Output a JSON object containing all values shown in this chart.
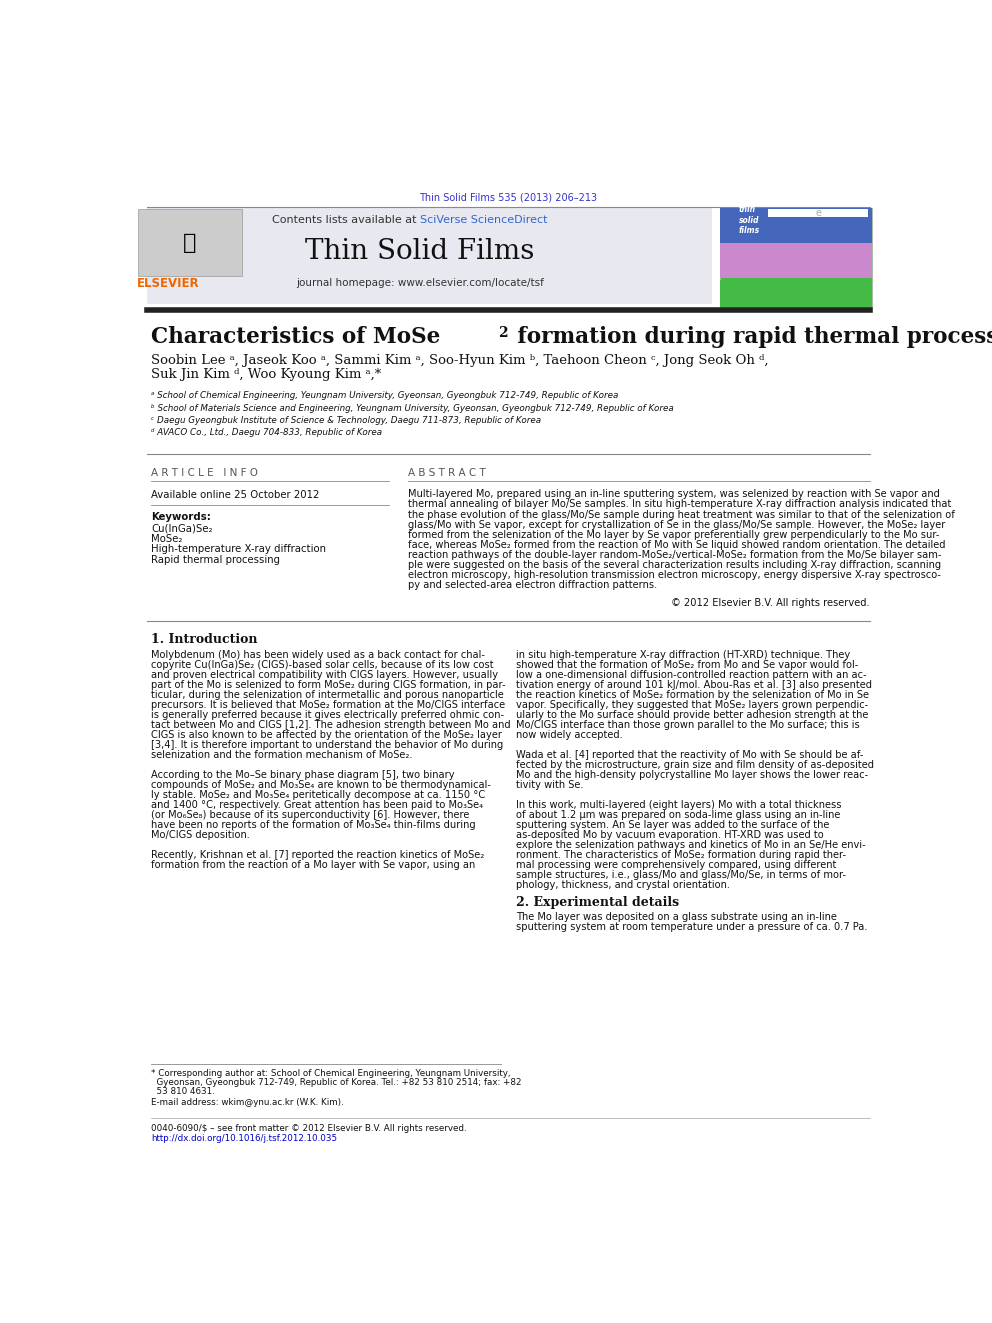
{
  "page_width": 9.92,
  "page_height": 13.23,
  "background_color": "#ffffff",
  "journal_ref_text": "Thin Solid Films 535 (2013) 206–213",
  "journal_ref_color": "#3333cc",
  "header_bg_color": "#e8e8f0",
  "journal_name": "Thin Solid Films",
  "journal_homepage": "journal homepage: www.elsevier.com/locate/tsf",
  "contents_text": "Contents lists available at ",
  "sciverse_text": "SciVerse ScienceDirect",
  "sciverse_color": "#3366cc",
  "elsevier_color": "#ee6600",
  "title_part1": "Characteristics of MoSe",
  "title_sub": "2",
  "title_part2": " formation during rapid thermal processing of Mo-coated glass",
  "authors": "Soobin Lee ᵃ, Jaseok Koo ᵃ, Sammi Kim ᵃ, Soo-Hyun Kim ᵇ, Taehoon Cheon ᶜ, Jong Seok Oh ᵈ,",
  "authors2": "Suk Jin Kim ᵈ, Woo Kyoung Kim ᵃ,*",
  "affil_a": "ᵃ School of Chemical Engineering, Yeungnam University, Gyeonsan, Gyeongbuk 712-749, Republic of Korea",
  "affil_b": "ᵇ School of Materials Science and Engineering, Yeungnam University, Gyeonsan, Gyeongbuk 712-749, Republic of Korea",
  "affil_c": "ᶜ Daegu Gyeongbuk Institute of Science & Technology, Daegu 711-873, Republic of Korea",
  "affil_d": "ᵈ AVACO Co., Ltd., Daegu 704-833, Republic of Korea",
  "article_info_label": "A R T I C L E   I N F O",
  "abstract_label": "A B S T R A C T",
  "available_online": "Available online 25 October 2012",
  "keywords_label": "Keywords:",
  "keywords": [
    "Cu(InGa)Se₂",
    "MoSe₂",
    "High-temperature X-ray diffraction",
    "Rapid thermal processing"
  ],
  "copyright_text": "© 2012 Elsevier B.V. All rights reserved.",
  "section1_title": "1. Introduction",
  "section2_title": "2. Experimental details",
  "email_text": "E-mail address: wkim@ynu.ac.kr (W.K. Kim).",
  "issn_text": "0040-6090/$ – see front matter © 2012 Elsevier B.V. All rights reserved.",
  "doi_text": "http://dx.doi.org/10.1016/j.tsf.2012.10.035",
  "doi_color": "#0000cc",
  "text_color": "#111111",
  "gray_color": "#888888"
}
